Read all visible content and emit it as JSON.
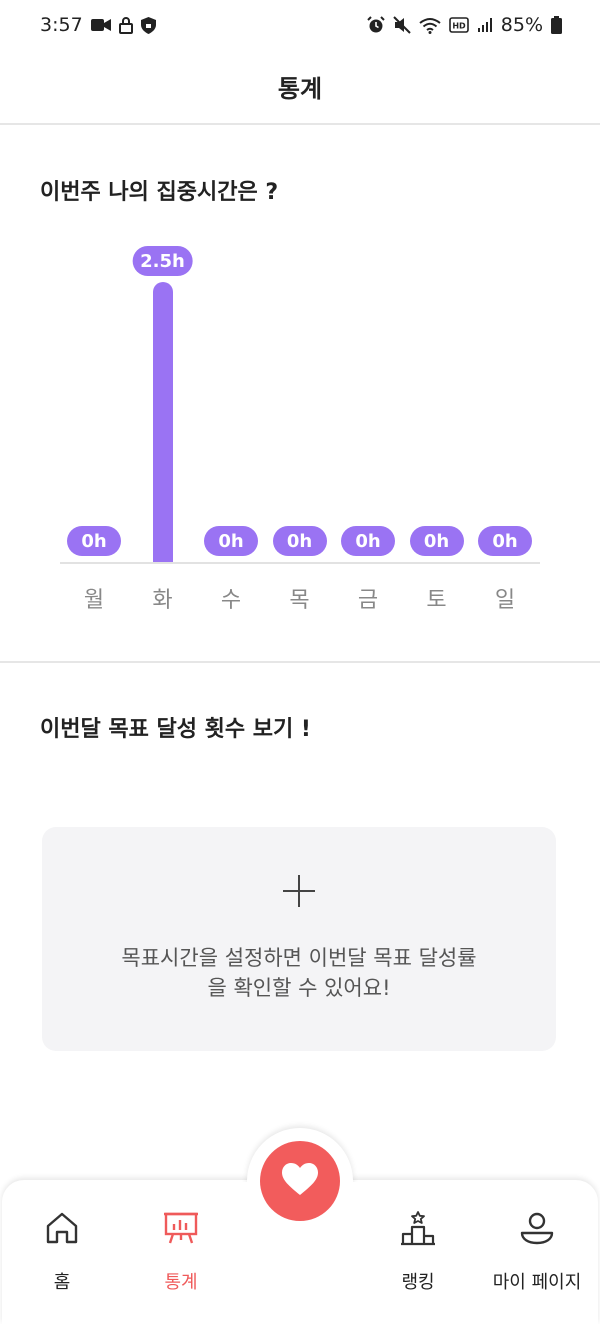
{
  "status_bar": {
    "time": "3:57",
    "battery": "85%",
    "left_icons": [
      "video-camera-icon",
      "lock-icon",
      "shield-icon"
    ],
    "right_icons": [
      "alarm-icon",
      "mute-icon",
      "wifi-icon",
      "hd-icon",
      "signal-icon",
      "battery-icon"
    ]
  },
  "header": {
    "title": "통계"
  },
  "weekly": {
    "title": "이번주 나의 집중시간은 ?"
  },
  "chart_data": {
    "type": "bar",
    "categories": [
      "월",
      "화",
      "수",
      "목",
      "금",
      "토",
      "일"
    ],
    "values": [
      0,
      2.5,
      0,
      0,
      0,
      0,
      0
    ],
    "data_labels": [
      "0h",
      "2.5h",
      "0h",
      "0h",
      "0h",
      "0h",
      "0h"
    ],
    "title": "",
    "xlabel": "",
    "ylabel": "",
    "ylim": [
      0,
      2.5
    ],
    "grid": false,
    "bar_color": "#9a73f3"
  },
  "monthly": {
    "title": "이번달 목표 달성 횟수 보기 !",
    "empty_text_line1": "목표시간을 설정하면 이번달 목표 달성률",
    "empty_text_line2": "을 확인할 수 있어요!"
  },
  "nav": {
    "home": "홈",
    "stats": "통계",
    "ranking": "랭킹",
    "mypage": "마이 페이지",
    "active": "stats",
    "accent_color": "#ef5a5a",
    "fab_color": "#f25c5c"
  }
}
